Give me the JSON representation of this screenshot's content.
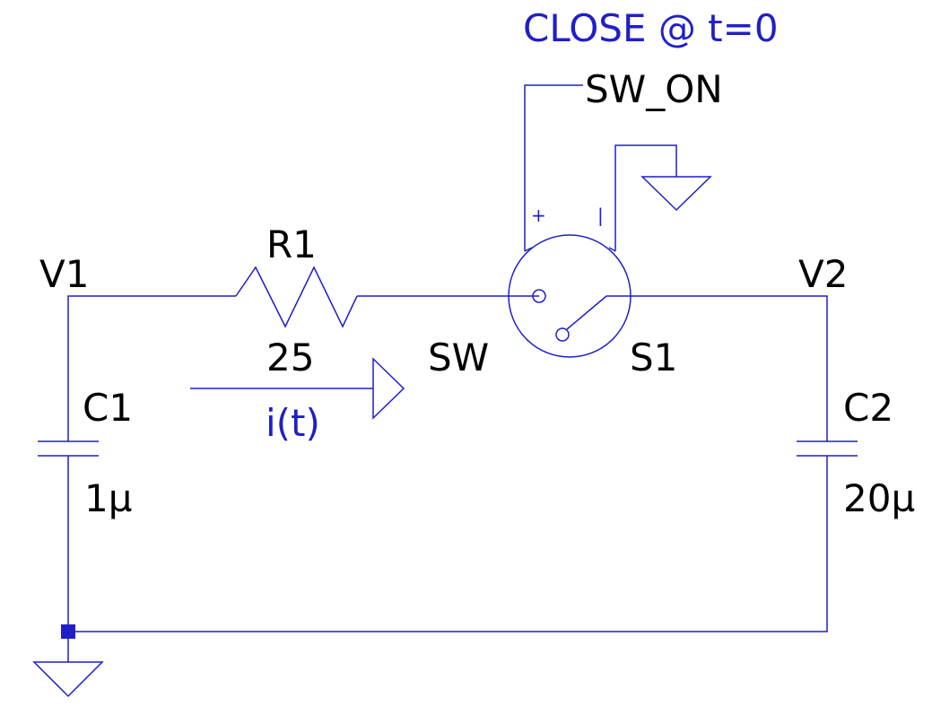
{
  "directive": "CLOSE @ t=0",
  "control_net": "SW_ON",
  "nodes": {
    "left": "V1",
    "right": "V2"
  },
  "resistor": {
    "ref": "R1",
    "value": "25"
  },
  "capacitor_left": {
    "ref": "C1",
    "value": "1µ"
  },
  "capacitor_right": {
    "ref": "C2",
    "value": "20µ"
  },
  "switch": {
    "model": "SW",
    "ref": "S1",
    "pin_plus": "+",
    "pin_minus": "|"
  },
  "current_probe": "i(t)",
  "colors": {
    "wire": "#1f1fc8",
    "text": "#000000",
    "directive": "#1f1fc8"
  }
}
